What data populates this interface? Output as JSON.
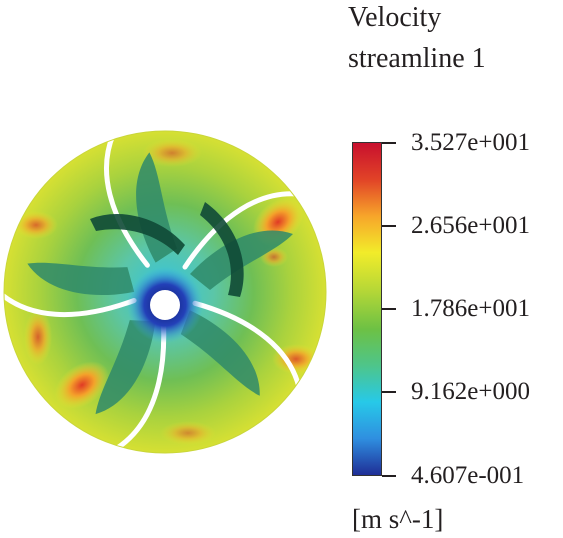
{
  "legend": {
    "title_line1": "Velocity",
    "title_line2": "streamline 1",
    "tick_labels": [
      "3.527e+001",
      "2.656e+001",
      "1.786e+001",
      "9.162e+000",
      "4.607e-001"
    ],
    "unit": "[m s^-1]",
    "colormap": [
      "#1f2e96",
      "#2f8fe0",
      "#27c9e8",
      "#4ec58a",
      "#6dc144",
      "#b8d836",
      "#f2ec2a",
      "#f7a52a",
      "#e14327",
      "#c8102e"
    ]
  },
  "image": {
    "description_icon": "impeller-velocity-contour"
  }
}
